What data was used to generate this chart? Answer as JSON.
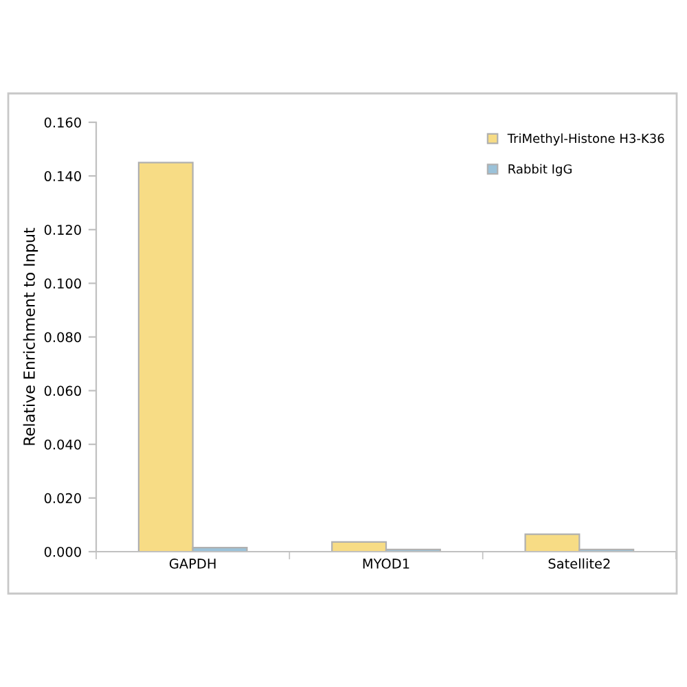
{
  "chart_data": {
    "type": "bar",
    "ylabel": "Relative Enrichment to Input",
    "categories": [
      "GAPDH",
      "MYOD1",
      "Satellite2"
    ],
    "series": [
      {
        "name": "TriMethyl-Histone H3-K36",
        "color": "#f7dc85",
        "values": [
          0.145,
          0.0036,
          0.0065
        ]
      },
      {
        "name": "Rabbit IgG",
        "color": "#9bc2d9",
        "values": [
          0.0015,
          0.0008,
          0.0008
        ]
      }
    ],
    "ylim": [
      0,
      0.16
    ],
    "yticks": [
      {
        "value": 0,
        "label": "0.000"
      },
      {
        "value": 0.02,
        "label": "0.020"
      },
      {
        "value": 0.04,
        "label": "0.040"
      },
      {
        "value": 0.06,
        "label": "0.060"
      },
      {
        "value": 0.08,
        "label": "0.080"
      },
      {
        "value": 0.1,
        "label": "0.100"
      },
      {
        "value": 0.12,
        "label": "0.120"
      },
      {
        "value": 0.14,
        "label": "0.140"
      },
      {
        "value": 0.16,
        "label": "0.160"
      }
    ],
    "grid": false,
    "legend": "top right"
  }
}
